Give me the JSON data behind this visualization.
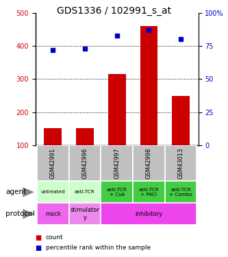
{
  "title": "GDS1336 / 102991_s_at",
  "samples": [
    "GSM42991",
    "GSM42996",
    "GSM42997",
    "GSM42998",
    "GSM43013"
  ],
  "counts": [
    152,
    152,
    315,
    460,
    248
  ],
  "percentile_ranks": [
    72,
    73,
    83,
    87,
    80
  ],
  "ylim_left": [
    100,
    500
  ],
  "ylim_right": [
    0,
    100
  ],
  "yticks_left": [
    100,
    200,
    300,
    400,
    500
  ],
  "yticks_right": [
    0,
    25,
    50,
    75,
    100
  ],
  "ytick_labels_right": [
    "0",
    "25",
    "50",
    "75",
    "100%"
  ],
  "bar_color": "#cc0000",
  "dot_color": "#0000cc",
  "agent_labels": [
    "untreated",
    "anti-TCR",
    "anti-TCR\n+ CsA",
    "anti-TCR\n+ PKCi",
    "anti-TCR\n+ Combo"
  ],
  "agent_light_color": "#ccffcc",
  "agent_dark_color": "#44cc44",
  "sample_bg_color": "#c0c0c0",
  "sample_border_color": "#ffffff",
  "legend_count_color": "#cc0000",
  "legend_pct_color": "#0000cc",
  "title_fontsize": 10,
  "tick_fontsize": 7,
  "label_fontsize": 7,
  "sample_fontsize": 6,
  "anno_fontsize": 6.5
}
